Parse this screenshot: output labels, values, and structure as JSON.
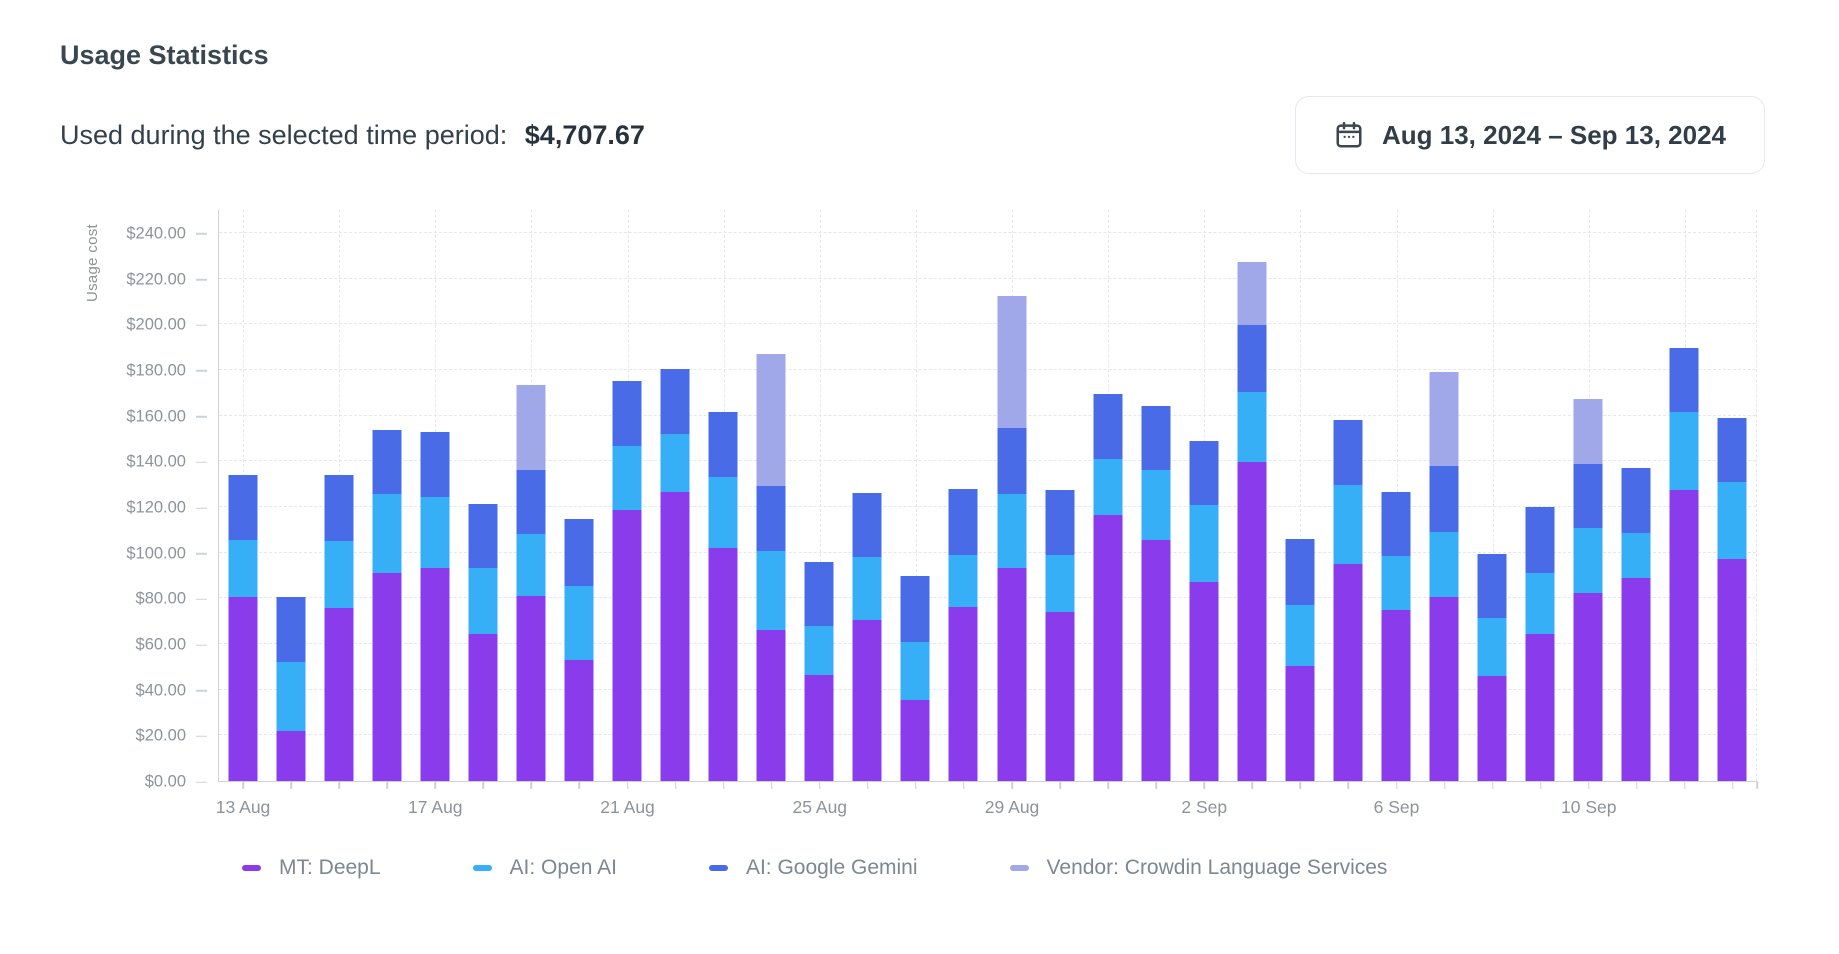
{
  "page": {
    "title": "Usage Statistics"
  },
  "summary": {
    "label": "Used during the selected time period:",
    "value": "$4,707.67"
  },
  "date_range": {
    "label": "Aug 13, 2024 – Sep 13, 2024",
    "icon": "calendar-icon"
  },
  "colors": {
    "deepl": "#8A3BEB",
    "openai": "#37AFF7",
    "gemini": "#4A6BE8",
    "vendor": "#A0A8EA",
    "grid": "#e4e7eb",
    "axis": "#ccd2d8",
    "axis_text": "#8d939b",
    "legend_text": "#7d8792"
  },
  "chart_data": {
    "type": "bar",
    "stacked": true,
    "ylabel": "Usage cost",
    "ylim": [
      0,
      250.5
    ],
    "grid": true,
    "legend_position": "bottom",
    "xtick_label_every": 4,
    "ytick_values": [
      0,
      20,
      40,
      60,
      80,
      100,
      120,
      140,
      160,
      180,
      200,
      220,
      240
    ],
    "ytick_labels": [
      "$0.00",
      "$20.00",
      "$40.00",
      "$60.00",
      "$80.00",
      "$100.00",
      "$120.00",
      "$140.00",
      "$160.00",
      "$180.00",
      "$200.00",
      "$220.00",
      "$240.00"
    ],
    "categories": [
      "13 Aug",
      "14 Aug",
      "15 Aug",
      "16 Aug",
      "17 Aug",
      "18 Aug",
      "19 Aug",
      "20 Aug",
      "21 Aug",
      "22 Aug",
      "23 Aug",
      "24 Aug",
      "25 Aug",
      "26 Aug",
      "27 Aug",
      "28 Aug",
      "29 Aug",
      "30 Aug",
      "31 Aug",
      "1 Sep",
      "2 Sep",
      "3 Sep",
      "4 Sep",
      "5 Sep",
      "6 Sep",
      "7 Sep",
      "8 Sep",
      "9 Sep",
      "10 Sep",
      "11 Sep",
      "12 Sep",
      "13 Sep"
    ],
    "series": [
      {
        "name": "MT: DeepL",
        "color": "#8A3BEB",
        "values": [
          80.8,
          21.9,
          75.6,
          91.3,
          93.3,
          64.6,
          81.1,
          52.9,
          118.7,
          126.6,
          102.0,
          66.2,
          46.3,
          70.6,
          35.6,
          76.1,
          93.3,
          74.0,
          116.4,
          105.4,
          87.1,
          139.9,
          50.2,
          94.9,
          74.8,
          80.8,
          45.8,
          64.3,
          82.4,
          88.9,
          127.4,
          97.3
        ]
      },
      {
        "name": "AI: Open AI",
        "color": "#37AFF7",
        "values": [
          24.6,
          30.2,
          29.4,
          34.5,
          30.9,
          28.7,
          27.1,
          32.6,
          28.0,
          25.2,
          31.3,
          34.5,
          21.5,
          27.4,
          25.3,
          23.0,
          32.5,
          25.1,
          24.8,
          30.6,
          33.7,
          30.3,
          27.0,
          34.8,
          23.6,
          28.2,
          25.6,
          27.0,
          28.5,
          19.6,
          34.2,
          33.7
        ]
      },
      {
        "name": "AI: Google Gemini",
        "color": "#4A6BE8",
        "values": [
          28.7,
          28.4,
          29.1,
          27.9,
          28.7,
          28.1,
          28.0,
          29.3,
          28.5,
          28.6,
          28.3,
          28.3,
          27.9,
          28.3,
          28.8,
          28.7,
          29.0,
          28.3,
          28.2,
          28.4,
          28.2,
          29.3,
          29.0,
          28.4,
          28.2,
          29.0,
          28.2,
          28.7,
          27.9,
          28.8,
          28.2,
          28.2
        ]
      },
      {
        "name": "Vendor: Crowdin Language Services",
        "color": "#A0A8EA",
        "values": [
          0,
          0,
          0,
          0,
          0,
          0,
          37.1,
          0,
          0,
          0,
          0,
          58.0,
          0,
          0,
          0,
          0,
          57.7,
          0,
          0,
          0,
          0,
          28.0,
          0,
          0,
          0,
          41.1,
          0,
          0,
          28.6,
          0,
          0,
          0
        ]
      }
    ]
  }
}
